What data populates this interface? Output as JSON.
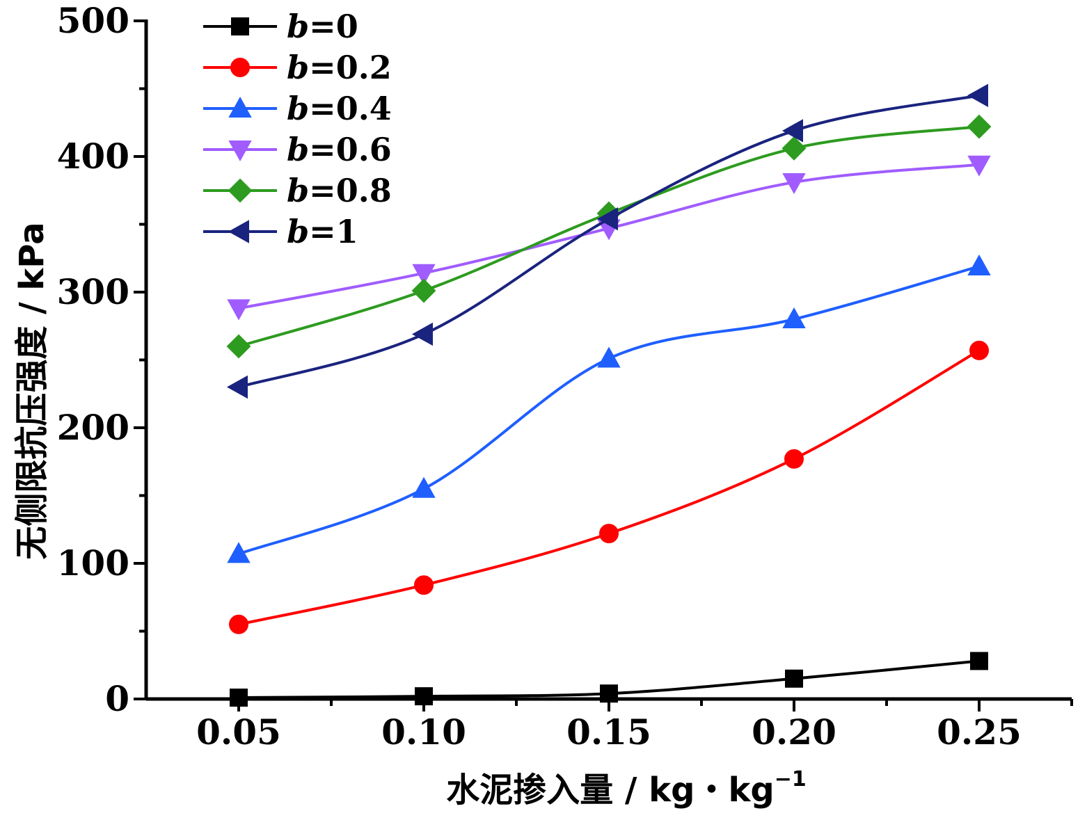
{
  "chart_data": {
    "type": "line",
    "xlabel": "水泥掺入量 / kg・kg",
    "xlabel_sup": "−1",
    "ylabel": "无侧限抗压强度 / kPa",
    "x": [
      0.05,
      0.1,
      0.15,
      0.2,
      0.25
    ],
    "x_tick_labels": [
      "0.05",
      "0.10",
      "0.15",
      "0.20",
      "0.25"
    ],
    "xlim": [
      0.025,
      0.275
    ],
    "ylim": [
      0,
      500
    ],
    "y_ticks": [
      0,
      100,
      200,
      300,
      400,
      500
    ],
    "y_tick_labels": [
      "0",
      "100",
      "200",
      "300",
      "400",
      "500"
    ],
    "grid": false,
    "legend_position": "top-left",
    "series": [
      {
        "name": "b=0",
        "var": "b",
        "val": "=0",
        "color": "#000000",
        "marker": "square",
        "values": [
          1,
          2,
          4,
          15,
          28
        ]
      },
      {
        "name": "b=0.2",
        "var": "b",
        "val": "=0.2",
        "color": "#ff0000",
        "marker": "circle",
        "values": [
          55,
          84,
          122,
          177,
          257
        ]
      },
      {
        "name": "b=0.4",
        "var": "b",
        "val": "=0.4",
        "color": "#1f5fff",
        "marker": "triangle-up",
        "values": [
          107,
          155,
          251,
          280,
          319
        ]
      },
      {
        "name": "b=0.6",
        "var": "b",
        "val": "=0.6",
        "color": "#a05cff",
        "marker": "triangle-down",
        "values": [
          288,
          314,
          347,
          381,
          394
        ]
      },
      {
        "name": "b=0.8",
        "var": "b",
        "val": "=0.8",
        "color": "#2d9b1f",
        "marker": "diamond",
        "values": [
          260,
          301,
          358,
          406,
          422
        ]
      },
      {
        "name": "b=1",
        "var": "b",
        "val": "=1",
        "color": "#1a237e",
        "marker": "triangle-left",
        "values": [
          230,
          269,
          354,
          419,
          445
        ]
      }
    ]
  }
}
